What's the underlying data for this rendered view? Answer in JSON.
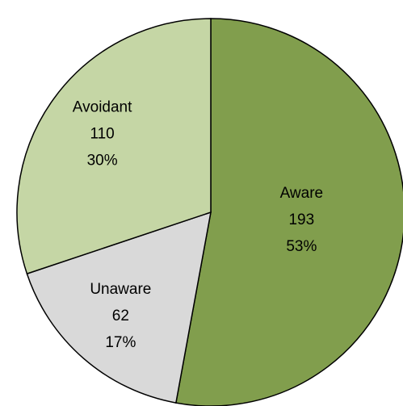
{
  "chart_data": {
    "type": "pie",
    "categories": [
      "Aware",
      "Unaware",
      "Avoidant"
    ],
    "values": [
      193,
      62,
      110
    ],
    "percentages": [
      {
        "value": 53,
        "label": "53%"
      },
      {
        "value": 17,
        "label": "17%"
      },
      {
        "value": 30,
        "label": "30%"
      }
    ],
    "colors": [
      "#819e4d",
      "#d9d9d9",
      "#c5d6a5"
    ]
  }
}
